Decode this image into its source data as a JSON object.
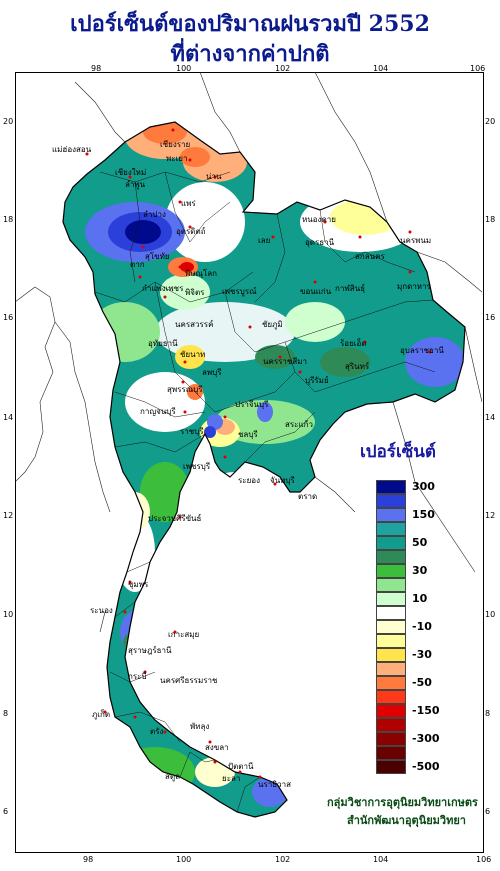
{
  "title": {
    "line1": "เปอร์เซ็นต์ของปริมาณฝนรวมปี  2552",
    "line2": "ที่ต่างจากค่าปกติ"
  },
  "axes": {
    "longitude_ticks": [
      "98",
      "100",
      "102",
      "104",
      "106"
    ],
    "latitude_ticks": [
      "20",
      "18",
      "16",
      "14",
      "12",
      "10",
      "8",
      "6"
    ]
  },
  "legend": {
    "title": "เปอร์เซ็นต์",
    "classes": [
      {
        "label": "300",
        "color": "#000a8c"
      },
      {
        "label": "",
        "color": "#2b3fd9"
      },
      {
        "label": "150",
        "color": "#5a72f0"
      },
      {
        "label": "",
        "color": "#1fa3a0"
      },
      {
        "label": "50",
        "color": "#129c8c"
      },
      {
        "label": "",
        "color": "#2e8b57"
      },
      {
        "label": "30",
        "color": "#3cbe3c"
      },
      {
        "label": "",
        "color": "#8fe68f"
      },
      {
        "label": "10",
        "color": "#cfffcf"
      },
      {
        "label": "",
        "color": "#ffffff"
      },
      {
        "label": "-10",
        "color": "#ffffd0"
      },
      {
        "label": "",
        "color": "#ffff99"
      },
      {
        "label": "-30",
        "color": "#ffe44d"
      },
      {
        "label": "",
        "color": "#ffb07a"
      },
      {
        "label": "-50",
        "color": "#ff7a3d"
      },
      {
        "label": "",
        "color": "#ff3a1a"
      },
      {
        "label": "-150",
        "color": "#e00000"
      },
      {
        "label": "",
        "color": "#b00000"
      },
      {
        "label": "-300",
        "color": "#8b0000"
      },
      {
        "label": "",
        "color": "#6a0000"
      },
      {
        "label": "-500",
        "color": "#4a0000"
      }
    ]
  },
  "credits": {
    "line1": "กลุ่มวิชาการอุตุนิยมวิทยาเกษตร",
    "line2": "สำนักพัฒนาอุตุนิยมวิทยา"
  },
  "place_labels": [
    "เชียงราย",
    "แม่ฮ่องสอน",
    "เชียงใหม่",
    "ลำพูน",
    "พะเยา",
    "น่าน",
    "แพร่",
    "ลำปาง",
    "ตาก",
    "อุตรดิตถ์",
    "พิษณุโลก",
    "สุโขทัย",
    "กำแพงเพชร",
    "พิจิตร",
    "เพชรบูรณ์",
    "หนองคาย",
    "อุดรธานี",
    "สกลนคร",
    "นครพนม",
    "มุกดาหาร",
    "เลย",
    "ขอนแก่น",
    "กาฬสินธุ์",
    "ร้อยเอ็ด",
    "อุบลราชธานี",
    "ชัยภูมิ",
    "นครราชสีมา",
    "สุรินทร์",
    "บุรีรัมย์",
    "นครสวรรค์",
    "อุทัยธานี",
    "ชัยนาท",
    "ลพบุรี",
    "สุพรรณบุรี",
    "กาญจนบุรี",
    "ปราจีนบุรี",
    "สระแก้ว",
    "ราชบุรี",
    "ชลบุรี",
    "ระยอง",
    "จันทบุรี",
    "ตราด",
    "เพชรบุรี",
    "ประจวบคีรีขันธ์",
    "ชุมพร",
    "ระนอง",
    "สุราษฎร์ธานี",
    "นครศรีธรรมราช",
    "ภูเก็ต",
    "กระบี่",
    "ตรัง",
    "พัทลุง",
    "สงขลา",
    "สตูล",
    "ปัตตานี",
    "ยะลา",
    "นราธิวาส",
    "เกาะสมุย"
  ]
}
